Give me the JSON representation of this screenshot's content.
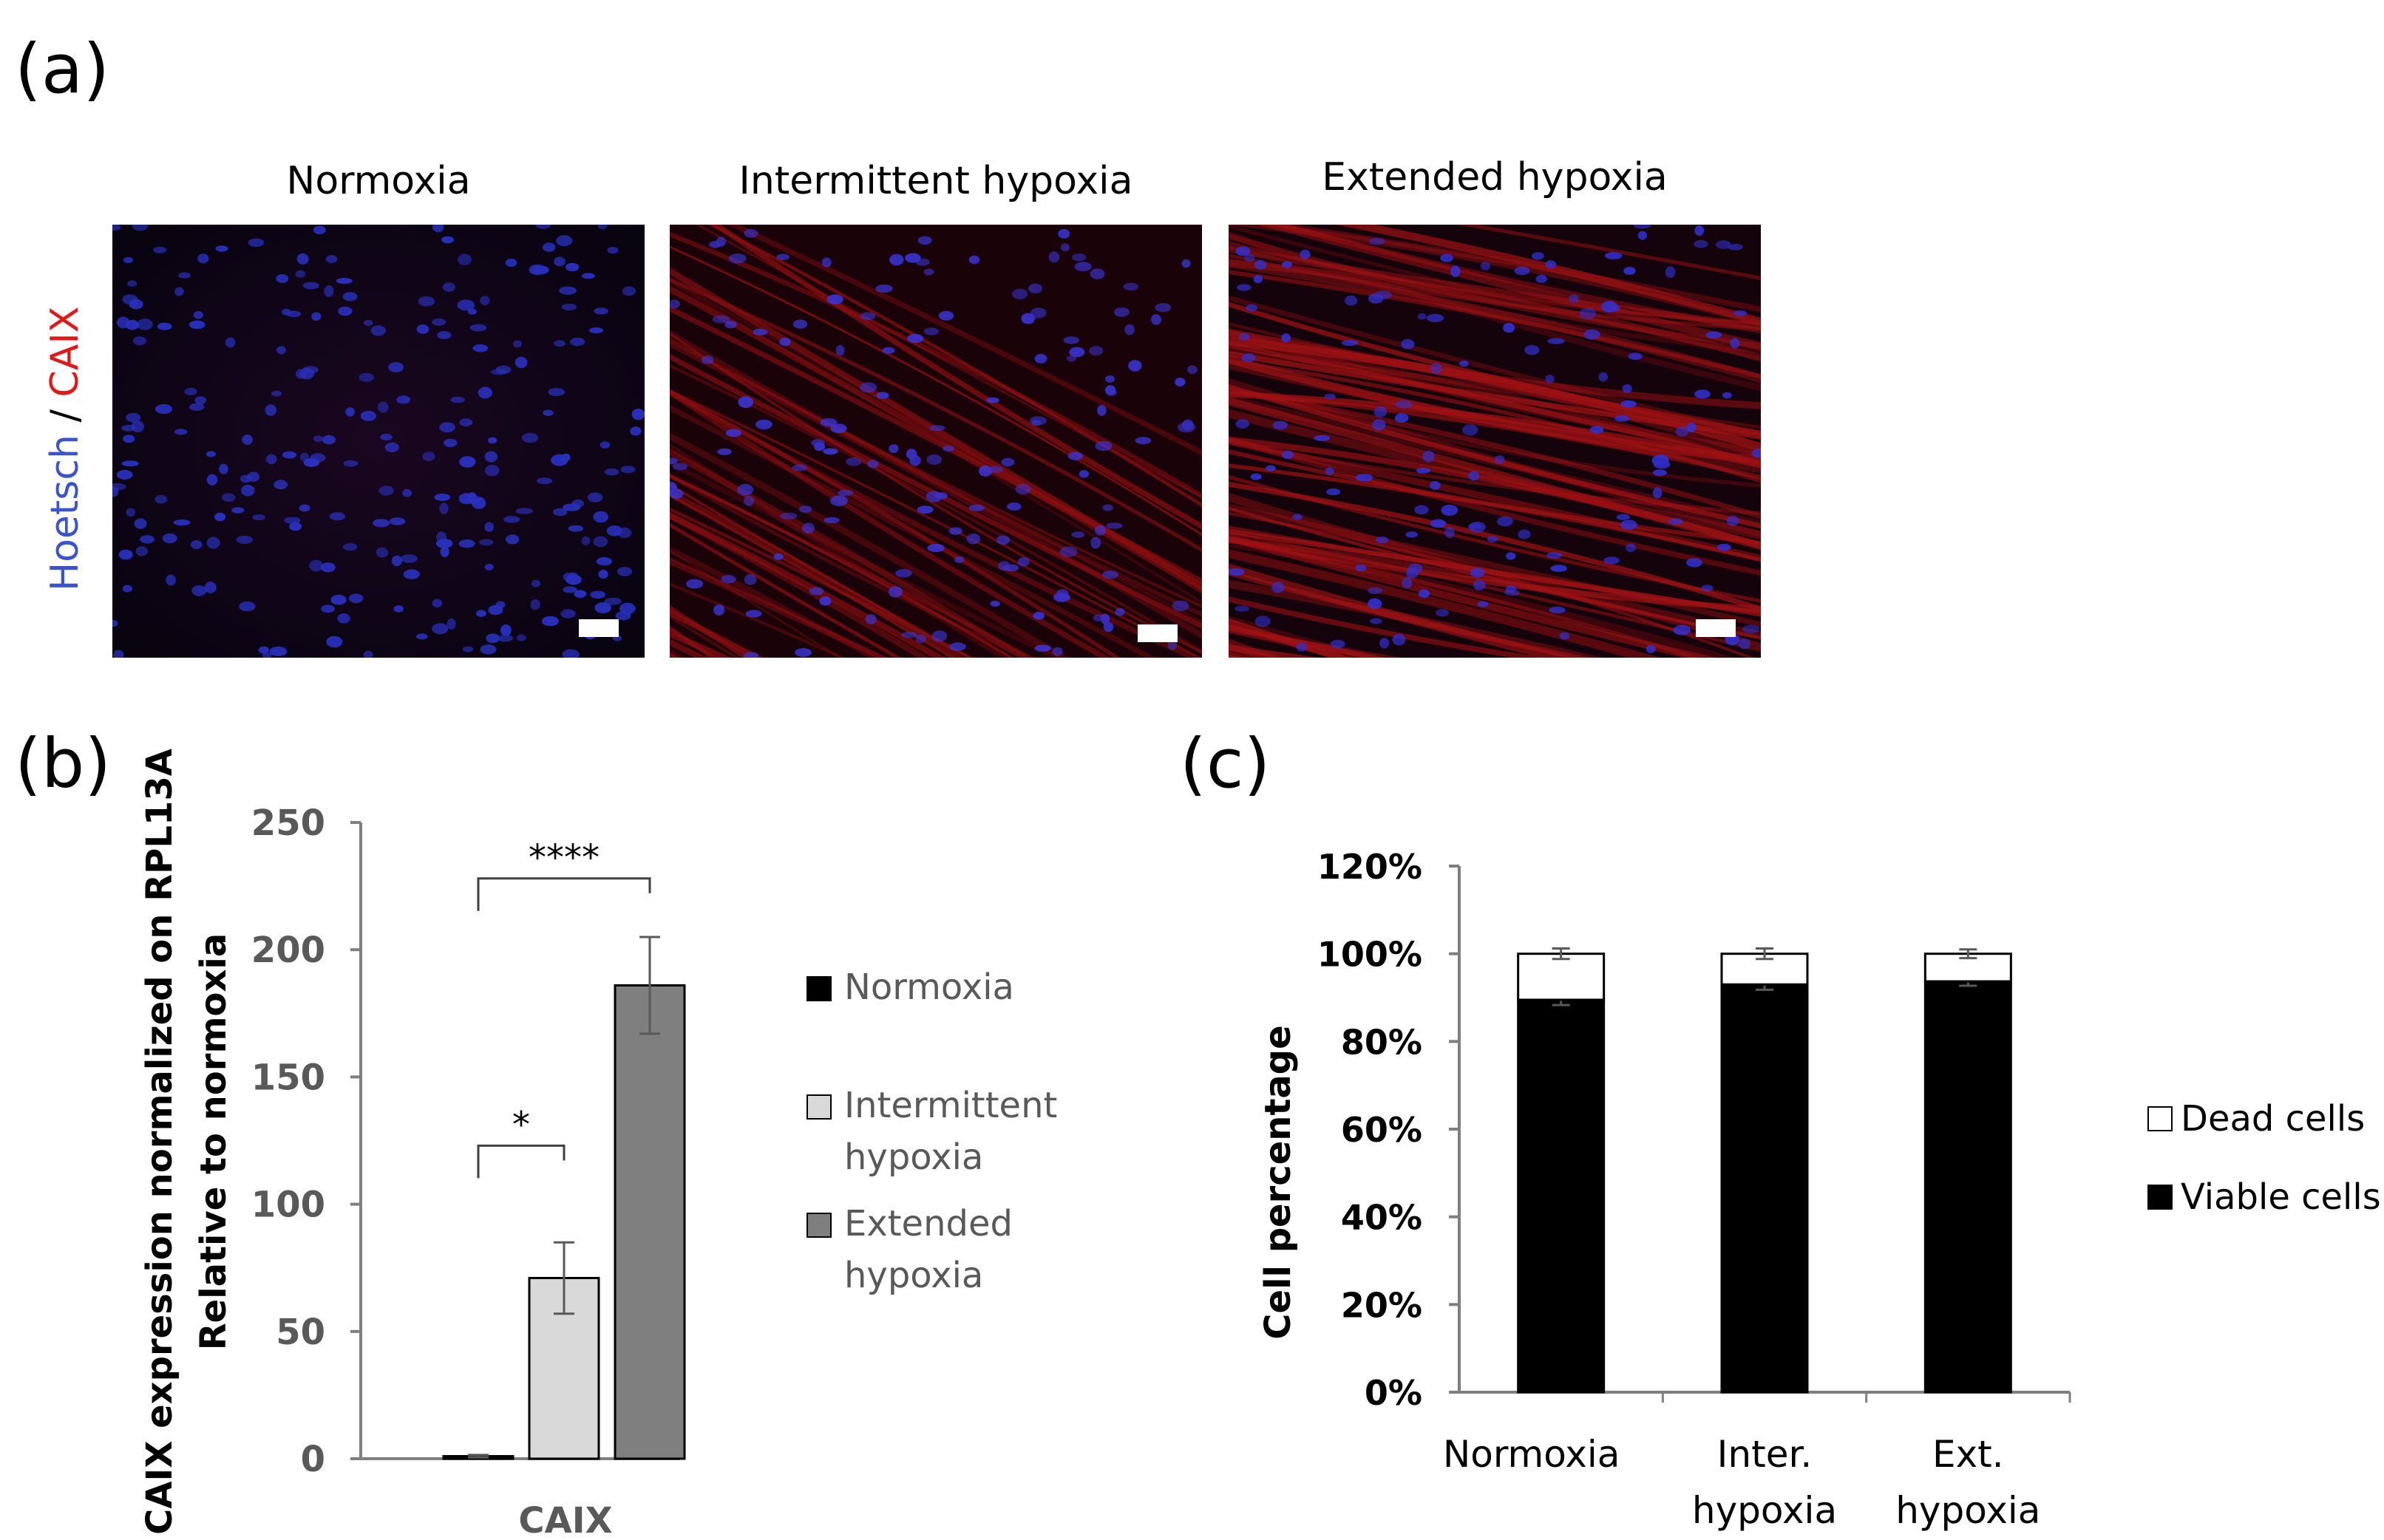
{
  "panels": {
    "a": "(a)",
    "b": "(b)",
    "c": "(c)"
  },
  "panel_a": {
    "conditions": [
      "Normoxia",
      "Intermittent hypoxia",
      "Extended hypoxia"
    ],
    "stain_label": {
      "part1": "Hoetsch",
      "sep": " / ",
      "part2": "CAIX"
    },
    "colors": {
      "nucleus": "#2f3cd6",
      "caix": "#e01818"
    }
  },
  "chart_data": [
    {
      "type": "bar",
      "ylabel": "CAIX expression normalized on RPL13A",
      "ylabel2": "Relative to normoxia",
      "categories": [
        "CAIX"
      ],
      "ylim": [
        0,
        250
      ],
      "yticks": [
        "0",
        "50",
        "100",
        "150",
        "200",
        "250"
      ],
      "series": [
        {
          "name": "Normoxia",
          "values": [
            1
          ],
          "error": [
            0.5
          ],
          "color": "#000000"
        },
        {
          "name": "Intermittent hypoxia",
          "values": [
            71
          ],
          "error": [
            14
          ],
          "color": "#d9d9d9"
        },
        {
          "name": "Extended hypoxia",
          "values": [
            186
          ],
          "error": [
            19
          ],
          "color": "#7f7f7f"
        }
      ],
      "annotations": [
        {
          "text": "*",
          "from": 0,
          "to": 1
        },
        {
          "text": "****",
          "from": 0,
          "to": 2
        }
      ],
      "legend": "right"
    },
    {
      "type": "bar",
      "stacked": true,
      "ylabel": "Cell percentage",
      "categories": [
        "Normoxia",
        "Inter. hypoxia",
        "Ext. hypoxia"
      ],
      "category_lines": [
        [
          "Normoxia"
        ],
        [
          "Inter.",
          "hypoxia"
        ],
        [
          "Ext.",
          "hypoxia"
        ]
      ],
      "ylim": [
        0,
        120
      ],
      "yticks": [
        "0%",
        "20%",
        "40%",
        "60%",
        "80%",
        "100%",
        "120%"
      ],
      "series": [
        {
          "name": "Viable cells",
          "values": [
            89.5,
            93,
            93.7
          ],
          "error": [
            1.2,
            1.2,
            1
          ],
          "color": "#000000"
        },
        {
          "name": "Dead cells",
          "values": [
            10.5,
            7,
            6.3
          ],
          "error": [
            1.2,
            1.2,
            1
          ],
          "color": "#ffffff"
        }
      ],
      "legend": "right"
    }
  ]
}
